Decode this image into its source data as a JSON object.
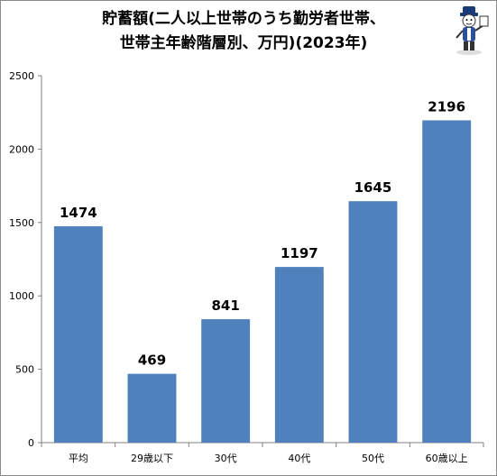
{
  "chart_data": {
    "type": "bar",
    "title_lines": [
      "貯蓄額(二人以上世帯のうち勤労者世帯、",
      "世帯主年齢階層別、万円)(2023年)"
    ],
    "categories": [
      "平均",
      "29歳以下",
      "30代",
      "40代",
      "50代",
      "60歳以上"
    ],
    "values": [
      1474,
      469,
      841,
      1197,
      1645,
      2196
    ],
    "data_labels": [
      "1474",
      "469",
      "841",
      "1197",
      "1645",
      "2196"
    ],
    "ylim": [
      0,
      2500
    ],
    "yticks": [
      0,
      500,
      1000,
      1500,
      2000,
      2500
    ],
    "bar_color": "#4f81bd",
    "grid": false,
    "legend": "none"
  }
}
